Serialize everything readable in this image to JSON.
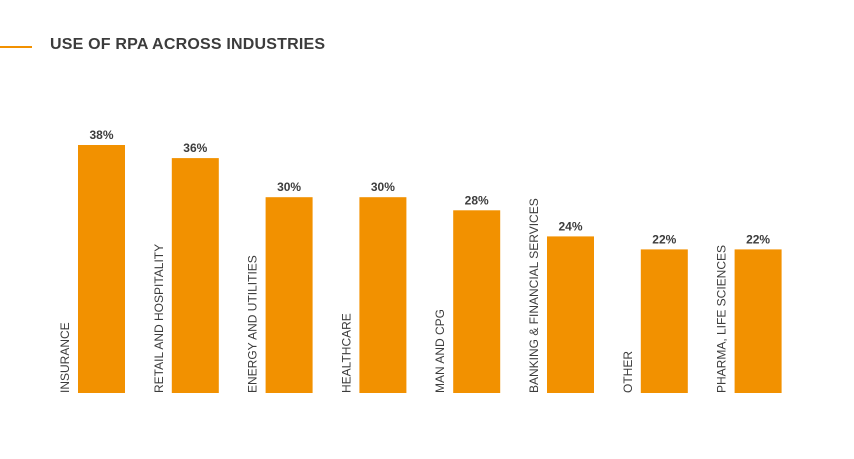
{
  "colors": {
    "accent": "#f29100",
    "bar": "#f29100",
    "text": "#3c3c3c"
  },
  "chart_data": {
    "type": "bar",
    "title": "USE OF RPA ACROSS INDUSTRIES",
    "categories": [
      "INSURANCE",
      "RETAIL AND HOSPITALITY",
      "ENERGY AND UTILITIES",
      "HEALTHCARE",
      "MAN AND CPG",
      "BANKING & FINANCIAL SERVICES",
      "OTHER",
      "PHARMA, LIFE SCIENCES"
    ],
    "values": [
      38,
      36,
      30,
      30,
      28,
      24,
      22,
      22
    ],
    "data_labels": [
      "38%",
      "36%",
      "30%",
      "30%",
      "28%",
      "24%",
      "22%",
      "22%"
    ],
    "unit": "%",
    "ylim": [
      0,
      38
    ],
    "grid": false,
    "legend": "none"
  }
}
